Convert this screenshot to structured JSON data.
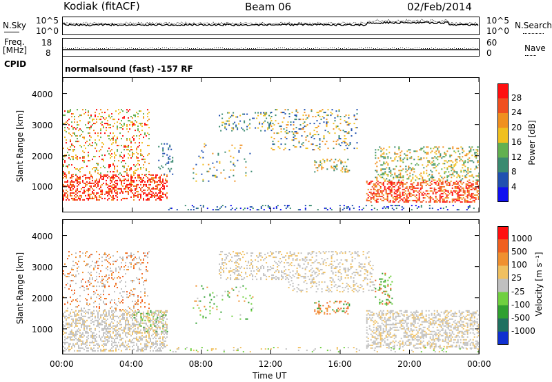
{
  "header": {
    "station": "Kodiak (fitACF)",
    "beam": "Beam 06",
    "date": "02/Feb/2014"
  },
  "noise_panel": {
    "left_label": "N.Sky",
    "left_ticks": [
      "10^5",
      "10^0"
    ],
    "right_ticks": [
      "10^5",
      "10^0"
    ],
    "right_label": "N.Search"
  },
  "freq_panel": {
    "left_label_line1": "Freq.",
    "left_label_line2": "[MHz]",
    "left_ticks": [
      "18",
      "8"
    ],
    "right_ticks": [
      "60",
      "0"
    ],
    "right_label": "Nave"
  },
  "cpid": {
    "label": "CPID",
    "value": "normalsound (fast) -157 RF"
  },
  "time_axis": {
    "label": "Time UT",
    "ticks": [
      "00:00",
      "04:00",
      "08:00",
      "12:00",
      "16:00",
      "20:00",
      "00:00"
    ]
  },
  "chart_data": [
    {
      "type": "heatmap",
      "name": "power-panel",
      "ylabel": "Slant Range [km]",
      "yticks": [
        "1000",
        "2000",
        "3000",
        "4000"
      ],
      "ylim": [
        200,
        4500
      ],
      "xlim": [
        0,
        24
      ],
      "colorbar": {
        "label": "Power [dB]",
        "ticks": [
          "4",
          "8",
          "12",
          "16",
          "20",
          "24",
          "28"
        ],
        "colors": [
          "#1010f0",
          "#2050b0",
          "#3a8a70",
          "#62b050",
          "#f0c020",
          "#f09020",
          "#f05020",
          "#ff1010"
        ]
      }
    },
    {
      "type": "heatmap",
      "name": "velocity-panel",
      "ylabel": "Slant Range [km]",
      "yticks": [
        "1000",
        "2000",
        "3000",
        "4000"
      ],
      "ylim": [
        200,
        4500
      ],
      "xlim": [
        0,
        24
      ],
      "colorbar": {
        "label": "Velocity [m s⁻¹]",
        "ticks": [
          "1000",
          "500",
          "100",
          "25",
          "-25",
          "-100",
          "-500",
          "-1000"
        ],
        "colors": [
          "#1030d0",
          "#207060",
          "#30a030",
          "#70d040",
          "#c0c0c0",
          "#f0c060",
          "#f09030",
          "#f06020",
          "#ff1010"
        ]
      }
    }
  ]
}
